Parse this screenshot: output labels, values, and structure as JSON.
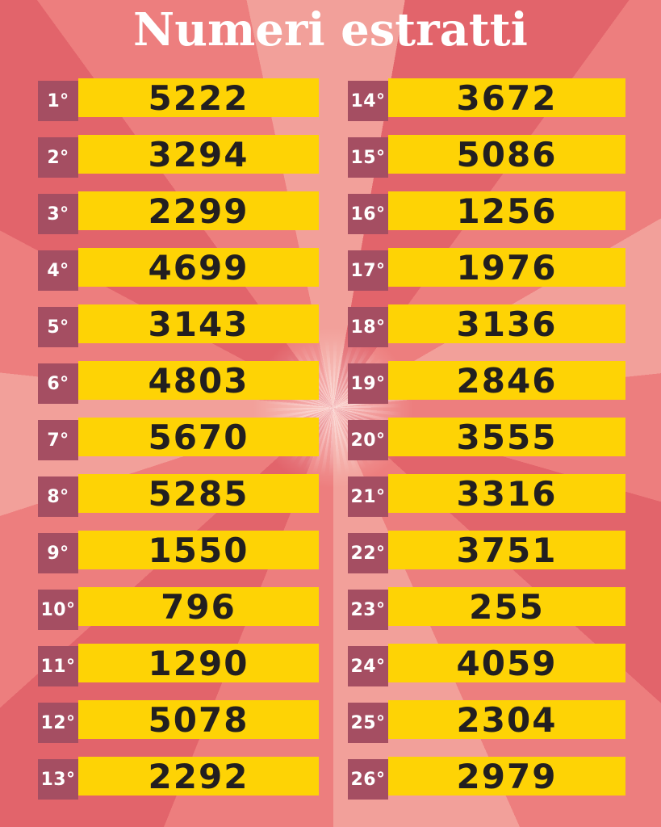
{
  "title": "Numeri estratti",
  "colors": {
    "background_base": "#ec7b7b",
    "background_dark": "#e2646b",
    "background_mid": "#ed7e7e",
    "background_light": "#f2a09a",
    "label_bg": "#a54e62",
    "label_text": "#ffffff",
    "number_bg": "#fed305",
    "number_text": "#221f20",
    "title_text": "#ffffff"
  },
  "columns": {
    "left": [
      {
        "rank": "1°",
        "number": "5222"
      },
      {
        "rank": "2°",
        "number": "3294"
      },
      {
        "rank": "3°",
        "number": "2299"
      },
      {
        "rank": "4°",
        "number": "4699"
      },
      {
        "rank": "5°",
        "number": "3143"
      },
      {
        "rank": "6°",
        "number": "4803"
      },
      {
        "rank": "7°",
        "number": "5670"
      },
      {
        "rank": "8°",
        "number": "5285"
      },
      {
        "rank": "9°",
        "number": "1550"
      },
      {
        "rank": "10°",
        "number": "796"
      },
      {
        "rank": "11°",
        "number": "1290"
      },
      {
        "rank": "12°",
        "number": "5078"
      },
      {
        "rank": "13°",
        "number": "2292"
      }
    ],
    "right": [
      {
        "rank": "14°",
        "number": "3672"
      },
      {
        "rank": "15°",
        "number": "5086"
      },
      {
        "rank": "16°",
        "number": "1256"
      },
      {
        "rank": "17°",
        "number": "1976"
      },
      {
        "rank": "18°",
        "number": "3136"
      },
      {
        "rank": "19°",
        "number": "2846"
      },
      {
        "rank": "20°",
        "number": "3555"
      },
      {
        "rank": "21°",
        "number": "3316"
      },
      {
        "rank": "22°",
        "number": "3751"
      },
      {
        "rank": "23°",
        "number": "255"
      },
      {
        "rank": "24°",
        "number": "4059"
      },
      {
        "rank": "25°",
        "number": "2304"
      },
      {
        "rank": "26°",
        "number": "2979"
      }
    ]
  }
}
